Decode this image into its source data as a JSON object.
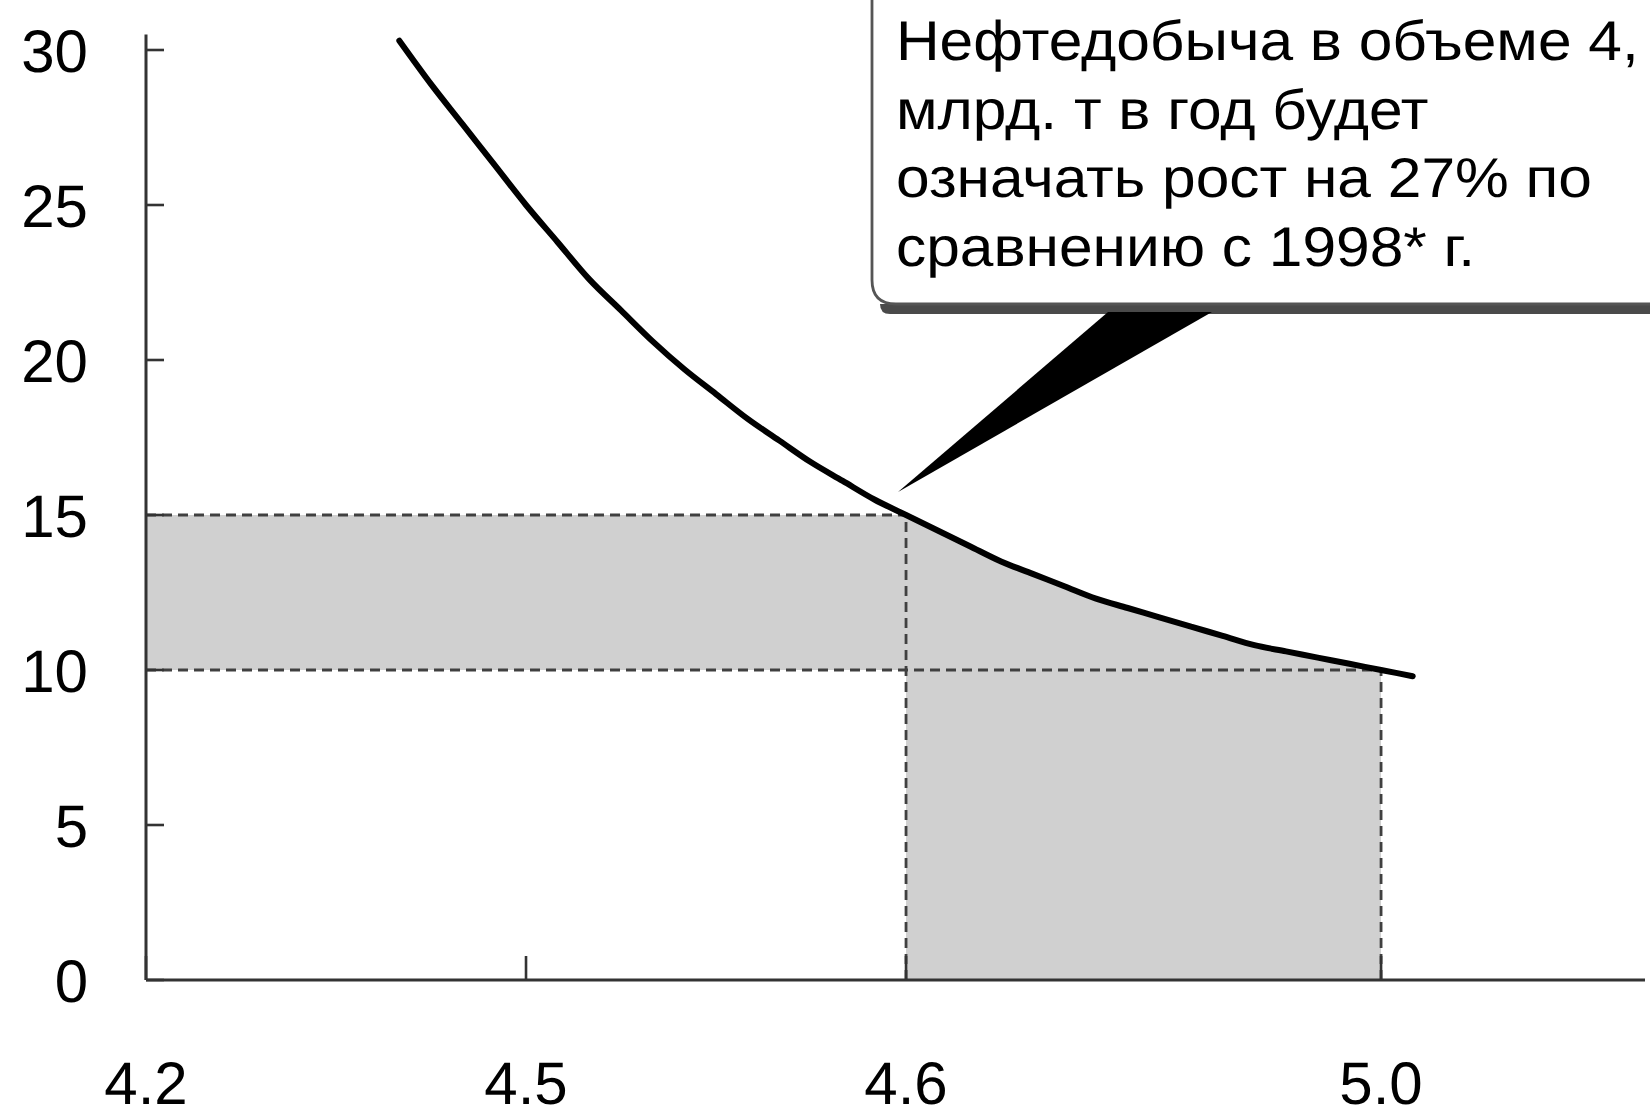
{
  "chart_data": {
    "type": "line",
    "categories": [
      "4.2",
      null,
      null,
      null,
      null,
      null,
      null,
      null,
      null,
      null,
      null,
      null,
      "4.5",
      null,
      null,
      null,
      null,
      null,
      null,
      null,
      null,
      null,
      null,
      null,
      "4.6",
      null,
      null,
      null,
      null,
      null,
      null,
      null,
      null,
      null,
      null,
      null,
      null,
      null,
      null,
      "5.0",
      null,
      null,
      null,
      null,
      null,
      null,
      null,
      null
    ],
    "series": [
      {
        "color": "#000000",
        "values": [
          null,
          null,
          null,
          null,
          null,
          null,
          null,
          null,
          30.3,
          28.9,
          27.6,
          26.3,
          25.0,
          23.8,
          22.6,
          21.6,
          20.6,
          19.7,
          18.9,
          18.1,
          17.4,
          16.7,
          16.1,
          15.5,
          15.0,
          14.5,
          14.0,
          13.5,
          13.1,
          12.7,
          12.3,
          12.0,
          11.7,
          11.4,
          11.1,
          10.8,
          10.6,
          10.4,
          10.2,
          10.0,
          9.8,
          null,
          null,
          null,
          null,
          null,
          null,
          null
        ]
      },
      {
        "type": "area",
        "color": "#d0d0d0",
        "values": [
          null,
          null,
          null,
          null,
          null,
          null,
          null,
          null,
          null,
          null,
          null,
          null,
          null,
          null,
          null,
          null,
          null,
          null,
          null,
          null,
          null,
          null,
          null,
          null,
          15.0,
          14.5,
          14.0,
          13.5,
          13.1,
          12.7,
          12.3,
          12.0,
          11.7,
          11.4,
          11.1,
          10.8,
          10.6,
          10.4,
          10.2,
          10.0,
          null,
          null,
          null,
          null,
          null,
          null,
          null,
          null
        ]
      }
    ],
    "ylim": [
      0,
      30.5
    ],
    "yticks": [
      0,
      5,
      10,
      15,
      20,
      25,
      30
    ],
    "bands": [
      {
        "axis": "y",
        "from": 10,
        "to": 15,
        "color": "#d0d0d0"
      }
    ],
    "ref_lines": [
      {
        "axis": "y",
        "value": 15,
        "color": "#404040",
        "line_style": "dashed"
      },
      {
        "axis": "y",
        "value": 10,
        "color": "#404040",
        "line_style": "dashed"
      },
      {
        "axis": "x",
        "value": "4.6",
        "color": "#404040",
        "line_style": "dashed"
      },
      {
        "axis": "x",
        "value": "5.0",
        "color": "#404040",
        "line_style": "dashed"
      }
    ],
    "annotations": [
      "Нефтедобыча в объеме 4,\nмлрд. т в год будет\nозначать рост на 27% по\nсравнению с 1998* г."
    ],
    "marker": "none",
    "line_style": "solid"
  }
}
